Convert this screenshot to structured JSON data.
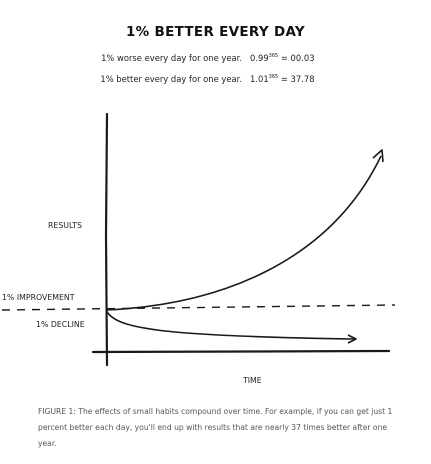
{
  "title": "1% BETTER EVERY DAY",
  "equations": [
    {
      "text": "1% worse every day for one year.",
      "base": "0.99",
      "exp": "365",
      "result": "= 00.03"
    },
    {
      "text": "1% better every day for one year.",
      "base": "1.01",
      "exp": "365",
      "result": "= 37.78"
    }
  ],
  "chart_data": {
    "type": "line",
    "title": "1% BETTER EVERY DAY",
    "xlabel": "TIME",
    "ylabel": "RESULTS",
    "reference_line": {
      "label": "1% IMPROVEMENT",
      "value": 1,
      "style": "dashed"
    },
    "series": [
      {
        "name": "1% IMPROVEMENT",
        "growth_factor": 1.01,
        "start": 1,
        "end": 37.78
      },
      {
        "name": "1% DECLINE",
        "growth_factor": 0.99,
        "start": 1,
        "end": 0.03
      }
    ],
    "grid": false,
    "ticks": false
  },
  "caption": "FIGURE 1: The effects of small habits compound over time. For example, if you can get just 1 percent better each day, you'll end up with results that are nearly 37 times better after one year."
}
